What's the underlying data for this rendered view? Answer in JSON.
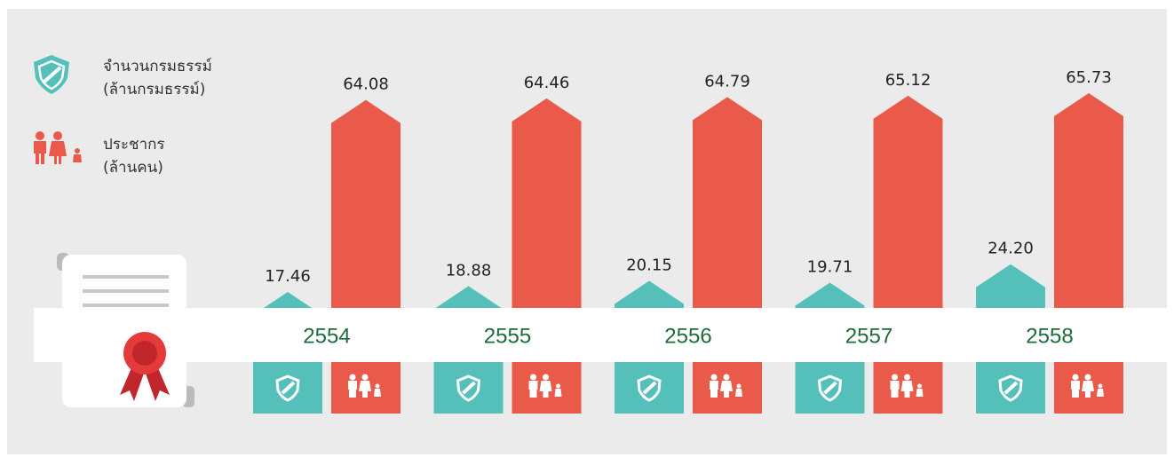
{
  "chart_data": {
    "type": "bar",
    "categories": [
      "2554",
      "2555",
      "2556",
      "2557",
      "2558"
    ],
    "series": [
      {
        "name": "จำนวนกรมธรรม์\n(ล้านกรมธรรม์)",
        "color": "#55bfb9",
        "values": [
          17.46,
          18.88,
          20.15,
          19.71,
          24.2
        ],
        "value_labels": [
          "17.46",
          "18.88",
          "20.15",
          "19.71",
          "24.20"
        ]
      },
      {
        "name": "ประชากร\n(ล้านคน)",
        "color": "#ea5a4a",
        "values": [
          64.08,
          64.46,
          64.79,
          65.12,
          65.73
        ]
      }
    ]
  }
}
